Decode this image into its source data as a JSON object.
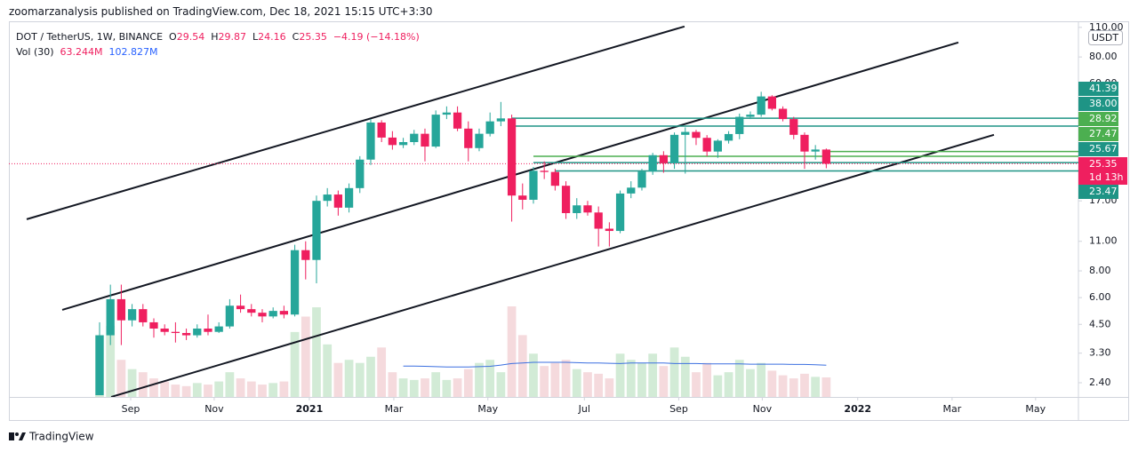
{
  "publisher": "zoomarzanalysis published on TradingView.com, Dec 18, 2021 15:15 UTC+3:30",
  "brand": "TradingView",
  "chart_data": {
    "type": "candlestick",
    "symbol": "DOT / TetherUS, 1W, BINANCE",
    "ohlc_letters": [
      "O",
      "H",
      "L",
      "C"
    ],
    "change": "−4.19 (−14.18%)",
    "volume_title": "Vol (30)",
    "volume_label": "63.244M",
    "volume_ma_label": "102.827M",
    "currency": "USDT",
    "countdown": "1d 13h",
    "up_color": "#26a69a",
    "down_color": "#ef1f5f",
    "volume_up_color": "#d2ebd6",
    "volume_down_color": "#f5dadd",
    "volume_ma_color": "#3b6fe0",
    "log_scale": true,
    "grid": false,
    "x": [
      0,
      1,
      2,
      3,
      4,
      5,
      6,
      7,
      8,
      9,
      10,
      11,
      12,
      13,
      14,
      15,
      16,
      17,
      18,
      19,
      20,
      21,
      22,
      23,
      24,
      25,
      26,
      27,
      28,
      29,
      30,
      31,
      32,
      33,
      34,
      35,
      36,
      37,
      38,
      39,
      40,
      41,
      42,
      43,
      44,
      45,
      46,
      47,
      48,
      49,
      50,
      51,
      52,
      53,
      54,
      55,
      56,
      57,
      58,
      59,
      60,
      61,
      62,
      63,
      64,
      65,
      66,
      67
    ],
    "open": [
      2.1,
      4.0,
      5.9,
      4.7,
      5.3,
      4.6,
      4.3,
      4.15,
      4.1,
      4.0,
      4.3,
      4.15,
      4.4,
      5.5,
      5.3,
      5.1,
      4.9,
      5.2,
      5.0,
      10.0,
      9.0,
      17.0,
      18.2,
      15.8,
      19.5,
      26.5,
      39.5,
      33.6,
      31.0,
      32.0,
      35.0,
      30.5,
      43.0,
      44.0,
      37.0,
      30.0,
      35.0,
      40.0,
      41.3,
      18.0,
      17.2,
      23.5,
      23.2,
      20.0,
      14.9,
      16.2,
      15.0,
      12.6,
      12.3,
      18.4,
      19.6,
      23.3,
      27.8,
      25.5,
      34.6,
      35.7,
      33.5,
      28.9,
      32.5,
      34.9,
      42.0,
      43.0,
      52.3,
      45.8,
      41.0,
      34.6,
      28.9,
      29.54
    ],
    "high": [
      4.6,
      6.9,
      6.9,
      5.6,
      5.6,
      4.8,
      4.5,
      4.6,
      4.3,
      4.5,
      5.0,
      4.6,
      5.9,
      6.2,
      5.6,
      5.3,
      5.4,
      5.5,
      10.6,
      11.0,
      18.0,
      19.5,
      19.0,
      20.5,
      27.5,
      41.0,
      40.5,
      36.0,
      33.5,
      36.5,
      37.0,
      45.0,
      47.0,
      47.0,
      40.0,
      37.0,
      44.0,
      49.3,
      43.0,
      20.5,
      24.5,
      26.0,
      24.0,
      21.0,
      17.5,
      17.0,
      16.0,
      13.5,
      19.0,
      21.0,
      24.0,
      28.5,
      29.0,
      35.5,
      37.5,
      36.5,
      34.5,
      33.0,
      36.0,
      43.5,
      44.5,
      55.0,
      53.0,
      47.0,
      42.0,
      35.5,
      31.0,
      29.87
    ],
    "low": [
      2.1,
      3.6,
      3.6,
      4.4,
      4.4,
      3.9,
      4.0,
      3.7,
      3.8,
      3.9,
      4.0,
      4.1,
      4.3,
      5.1,
      4.9,
      4.6,
      4.8,
      4.8,
      4.9,
      7.3,
      7.0,
      16.0,
      14.5,
      15.0,
      18.5,
      25.0,
      32.0,
      29.5,
      30.0,
      31.0,
      26.0,
      30.0,
      41.0,
      36.0,
      26.0,
      29.0,
      34.0,
      38.0,
      13.6,
      15.5,
      16.5,
      21.5,
      19.0,
      14.0,
      14.0,
      14.5,
      10.4,
      10.4,
      12.0,
      17.5,
      19.0,
      22.5,
      23.0,
      24.0,
      22.8,
      31.0,
      27.5,
      27.0,
      31.5,
      33.0,
      41.0,
      42.0,
      45.0,
      40.0,
      33.0,
      24.0,
      26.5,
      24.16
    ],
    "close": [
      4.0,
      5.9,
      4.7,
      5.3,
      4.6,
      4.3,
      4.15,
      4.1,
      4.0,
      4.3,
      4.15,
      4.4,
      5.5,
      5.3,
      5.1,
      4.9,
      5.2,
      5.0,
      10.0,
      9.0,
      17.0,
      18.2,
      15.8,
      19.5,
      26.5,
      39.5,
      33.6,
      31.0,
      32.0,
      35.0,
      30.5,
      43.0,
      44.0,
      37.0,
      30.0,
      35.0,
      40.0,
      41.3,
      18.0,
      17.2,
      23.5,
      23.2,
      20.0,
      14.9,
      16.2,
      15.0,
      12.6,
      12.3,
      18.4,
      19.6,
      23.3,
      27.8,
      25.5,
      34.6,
      35.7,
      33.5,
      28.9,
      32.5,
      34.9,
      42.0,
      43.0,
      52.3,
      45.8,
      41.0,
      34.6,
      28.9,
      29.54,
      25.35
    ],
    "volume": [
      200,
      230,
      120,
      90,
      80,
      60,
      50,
      40,
      35,
      45,
      40,
      50,
      80,
      60,
      50,
      40,
      45,
      50,
      210,
      260,
      290,
      170,
      110,
      120,
      110,
      130,
      160,
      80,
      60,
      55,
      60,
      80,
      55,
      60,
      90,
      110,
      120,
      80,
      293,
      200,
      140,
      100,
      110,
      120,
      90,
      80,
      75,
      60,
      140,
      120,
      110,
      140,
      100,
      160,
      130,
      80,
      110,
      70,
      80,
      120,
      90,
      110,
      85,
      70,
      60,
      75,
      65,
      63.244
    ],
    "volume_ma": [
      null,
      null,
      null,
      null,
      null,
      null,
      null,
      null,
      null,
      null,
      null,
      null,
      null,
      null,
      null,
      null,
      null,
      null,
      null,
      null,
      null,
      null,
      null,
      null,
      null,
      null,
      null,
      null,
      100,
      100,
      99,
      98,
      97,
      97,
      97,
      98,
      99,
      103,
      108,
      110,
      112,
      112,
      112,
      112,
      111,
      110,
      110,
      109,
      108,
      110,
      110,
      110,
      110,
      108,
      108,
      108,
      107,
      107,
      107,
      107,
      106,
      106,
      106,
      106,
      105,
      105,
      104,
      102.827
    ],
    "xlim": [
      -8.36,
      90.25
    ],
    "xticks": [
      {
        "value": 2.87,
        "label": "Sep"
      },
      {
        "value": 10.57,
        "label": "Nov"
      },
      {
        "value": 19.34,
        "label": "2021"
      },
      {
        "value": 27.13,
        "label": "Mar"
      },
      {
        "value": 35.8,
        "label": "May"
      },
      {
        "value": 44.7,
        "label": "Jul"
      },
      {
        "value": 53.4,
        "label": "Sep"
      },
      {
        "value": 61.1,
        "label": "Nov"
      },
      {
        "value": 69.9,
        "label": "2022"
      },
      {
        "value": 78.6,
        "label": "Mar"
      },
      {
        "value": 86.3,
        "label": "May"
      }
    ],
    "ylim": [
      2.06,
      122
    ],
    "yticks": [
      {
        "value": 110,
        "label": "110.00"
      },
      {
        "value": 80,
        "label": "80.00"
      },
      {
        "value": 60,
        "label": "60.00"
      },
      {
        "value": 17,
        "label": "17.00"
      },
      {
        "value": 11,
        "label": "11.00"
      },
      {
        "value": 8,
        "label": "8.00"
      },
      {
        "value": 6,
        "label": "6.00"
      },
      {
        "value": 4.5,
        "label": "4.50"
      },
      {
        "value": 3.3,
        "label": "3.30"
      },
      {
        "value": 2.4,
        "label": "2.40"
      }
    ],
    "levels": [
      {
        "price": 41.39,
        "color": "#1e9485",
        "start": 38
      },
      {
        "price": {
          "value": 38,
          "label": "38.00"
        },
        "color": "#1e9485",
        "start": 38
      },
      {
        "price": 28.92,
        "color": "#4caf50",
        "start": 67
      },
      {
        "price": 27.47,
        "color": "#4caf50",
        "start": 40
      },
      {
        "price": 25.67,
        "color": "#1e9485",
        "start": 40
      },
      {
        "price": 23.47,
        "color": "#1e9485",
        "start": 42
      }
    ],
    "trendlines": [
      {
        "x": [
          -6.72,
          53.93
        ],
        "y": [
          13.95,
          111.1
        ]
      },
      {
        "x": [
          -3.44,
          79.18
        ],
        "y": [
          5.26,
          93.5
        ]
      },
      {
        "x": [
          1.07,
          82.46
        ],
        "y": [
          2.06,
          34.6
        ]
      }
    ]
  }
}
